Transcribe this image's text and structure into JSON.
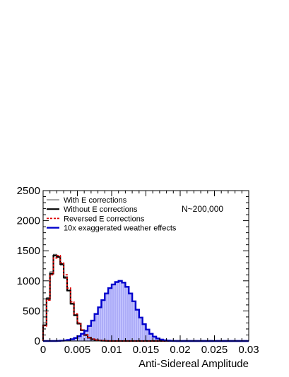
{
  "chart_data": {
    "type": "histogram",
    "xlabel": "Anti-Sidereal Amplitude",
    "ylabel": "",
    "xlim": [
      0,
      0.03
    ],
    "ylim": [
      0,
      2500
    ],
    "bin_width": 0.0005,
    "xticks": [
      {
        "value": 0,
        "label": "0"
      },
      {
        "value": 0.005,
        "label": "0.005"
      },
      {
        "value": 0.01,
        "label": "0.01"
      },
      {
        "value": 0.015,
        "label": "0.015"
      },
      {
        "value": 0.02,
        "label": "0.02"
      },
      {
        "value": 0.025,
        "label": "0.025"
      },
      {
        "value": 0.03,
        "label": "0.03"
      }
    ],
    "yticks": [
      {
        "value": 0,
        "label": "0"
      },
      {
        "value": 500,
        "label": "500"
      },
      {
        "value": 1000,
        "label": "1000"
      },
      {
        "value": 1500,
        "label": "1500"
      },
      {
        "value": 2000,
        "label": "2000"
      },
      {
        "value": 2500,
        "label": "2500"
      }
    ],
    "annotation": "N~200,000",
    "legend_position": "top-left",
    "grid": false,
    "series": [
      {
        "name": "With E corrections",
        "style": "thin-solid",
        "color": "#555555",
        "values": [
          270,
          720,
          1150,
          1440,
          1390,
          1260,
          1040,
          830,
          610,
          420,
          280,
          170,
          95,
          50,
          28,
          14,
          7,
          3,
          1,
          0,
          0,
          0,
          0,
          0,
          0,
          0,
          0,
          0,
          0,
          0,
          0,
          0,
          0,
          0,
          0,
          0,
          0,
          0,
          0,
          0,
          0,
          0,
          0,
          0,
          0,
          0,
          0,
          0,
          0,
          0,
          0,
          0,
          0,
          0,
          0,
          0,
          0,
          0,
          0,
          0
        ]
      },
      {
        "name": "Without E corrections",
        "style": "thick-solid",
        "color": "#000000",
        "values": [
          260,
          700,
          1120,
          1420,
          1400,
          1280,
          1060,
          840,
          620,
          430,
          290,
          180,
          100,
          55,
          30,
          15,
          8,
          4,
          2,
          1,
          0,
          0,
          0,
          0,
          0,
          0,
          0,
          0,
          0,
          0,
          0,
          0,
          0,
          0,
          0,
          0,
          0,
          0,
          0,
          0,
          0,
          0,
          0,
          0,
          0,
          0,
          0,
          0,
          0,
          0,
          0,
          0,
          0,
          0,
          0,
          0,
          0,
          0,
          0,
          0
        ]
      },
      {
        "name": "Reversed E corrections",
        "style": "dotted",
        "color": "#dd0000",
        "values": [
          250,
          680,
          1100,
          1380,
          1420,
          1300,
          1100,
          880,
          650,
          450,
          300,
          185,
          105,
          58,
          32,
          16,
          8,
          4,
          2,
          1,
          0,
          0,
          0,
          0,
          0,
          0,
          0,
          0,
          0,
          0,
          0,
          0,
          0,
          0,
          0,
          0,
          0,
          0,
          0,
          0,
          0,
          0,
          0,
          0,
          0,
          0,
          0,
          0,
          0,
          0,
          0,
          0,
          0,
          0,
          0,
          0,
          0,
          0,
          0,
          0
        ]
      },
      {
        "name": "10x exaggerated weather effects",
        "style": "filled",
        "color": "#0000cc",
        "fill": "#b8b8ff",
        "values": [
          0,
          0,
          0,
          0,
          2,
          5,
          10,
          18,
          30,
          50,
          80,
          120,
          170,
          250,
          340,
          450,
          560,
          680,
          790,
          880,
          940,
          980,
          1000,
          970,
          900,
          790,
          660,
          520,
          390,
          280,
          190,
          120,
          72,
          42,
          24,
          12,
          6,
          3,
          1,
          0,
          0,
          0,
          0,
          0,
          0,
          0,
          0,
          0,
          0,
          0,
          0,
          0,
          0,
          0,
          0,
          0,
          0,
          0,
          0,
          0
        ]
      }
    ]
  }
}
